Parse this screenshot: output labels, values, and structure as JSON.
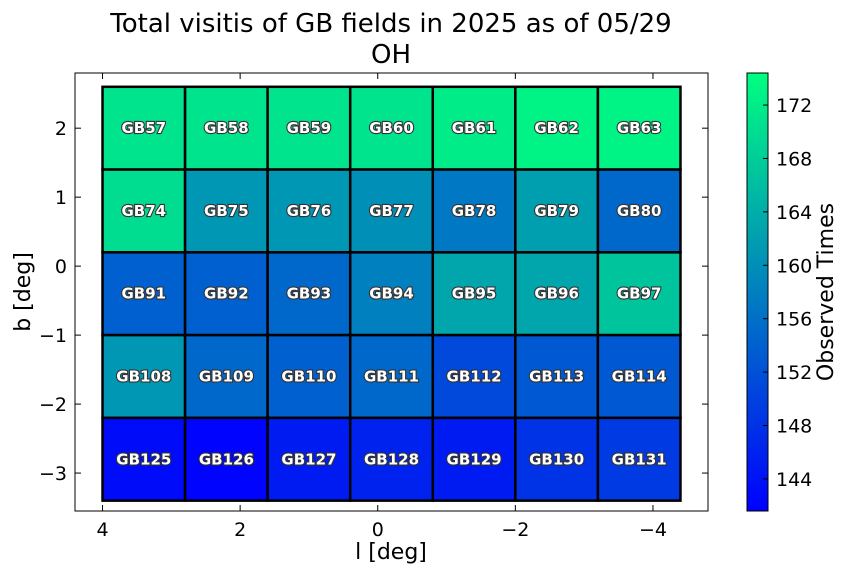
{
  "chart_data": {
    "type": "heatmap",
    "title": "Total visitis of GB fields in 2025 as of 05/29",
    "subtitle": "OH",
    "xlabel": "l [deg]",
    "ylabel": "b [deg]",
    "colorbar_label": "Observed Times",
    "colormap": "winter",
    "color_min": 141.6,
    "color_max": 174.4,
    "colorbar_ticks": [
      144,
      148,
      152,
      156,
      160,
      164,
      168,
      172
    ],
    "xlim": [
      4.4,
      -4.8
    ],
    "ylim": [
      -3.55,
      2.8
    ],
    "x_ticks": [
      4,
      2,
      0,
      -2,
      -4
    ],
    "y_ticks": [
      2,
      1,
      0,
      -1,
      -2,
      -3
    ],
    "l_edges": [
      4.0,
      2.8,
      1.6,
      0.4,
      -0.8,
      -2.0,
      -3.2,
      -4.4
    ],
    "b_edges": [
      2.6,
      1.4,
      0.2,
      -1.0,
      -2.2,
      -3.4
    ],
    "grid": false,
    "rows": [
      {
        "fields": [
          "GB57",
          "GB58",
          "GB59",
          "GB60",
          "GB61",
          "GB62",
          "GB63"
        ],
        "values": [
          171,
          171,
          171,
          171,
          172,
          173,
          173
        ]
      },
      {
        "fields": [
          "GB74",
          "GB75",
          "GB76",
          "GB77",
          "GB78",
          "GB79",
          "GB80"
        ],
        "values": [
          170,
          161,
          161,
          160,
          157,
          162,
          155
        ]
      },
      {
        "fields": [
          "GB91",
          "GB92",
          "GB93",
          "GB94",
          "GB95",
          "GB96",
          "GB97"
        ],
        "values": [
          154,
          154,
          155,
          158,
          163,
          163,
          167
        ]
      },
      {
        "fields": [
          "GB108",
          "GB109",
          "GB110",
          "GB111",
          "GB112",
          "GB113",
          "GB114"
        ],
        "values": [
          161,
          155,
          154,
          155,
          151,
          153,
          153
        ]
      },
      {
        "fields": [
          "GB125",
          "GB126",
          "GB127",
          "GB128",
          "GB129",
          "GB130",
          "GB131"
        ],
        "values": [
          143,
          142,
          145,
          146,
          145,
          148,
          149
        ]
      }
    ]
  }
}
